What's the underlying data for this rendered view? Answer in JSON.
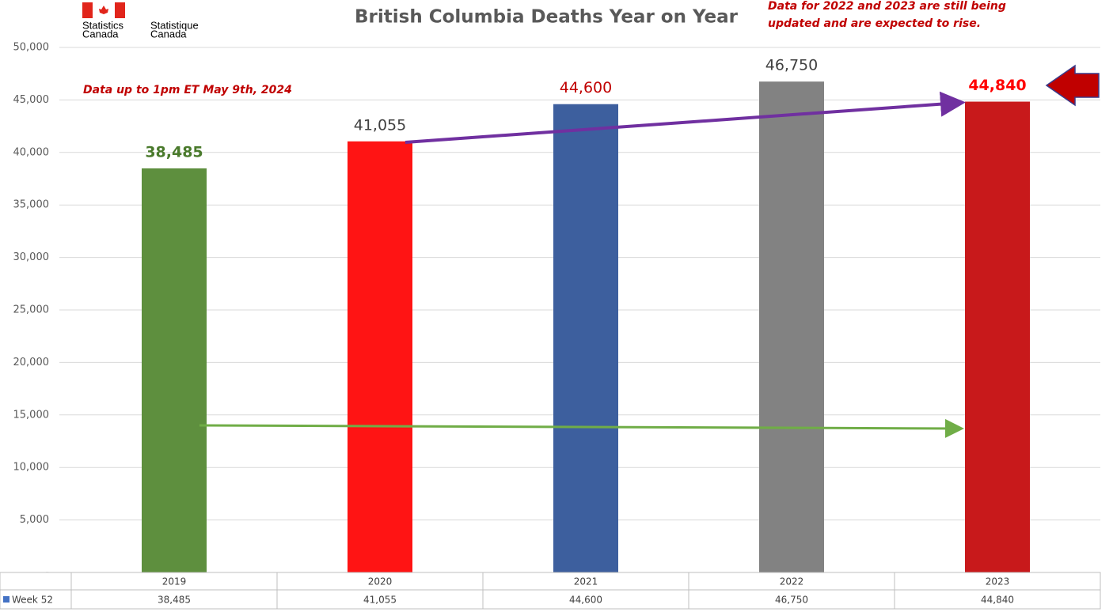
{
  "chart_data": {
    "type": "bar",
    "title": "British Columbia Deaths Year on Year",
    "logo_en": [
      "Statistics",
      "Canada"
    ],
    "logo_fr": [
      "Statistique",
      "Canada"
    ],
    "annotation_left": "Data up to 1pm ET May 9th, 2024",
    "annotation_right": [
      "Data for 2022 and 2023 are still being",
      "updated and are expected to rise."
    ],
    "categories": [
      "2019",
      "2020",
      "2021",
      "2022",
      "2023"
    ],
    "series": [
      {
        "name": "Week 52",
        "color": "#4472c4",
        "values": [
          38485,
          41055,
          44600,
          46750,
          44840
        ],
        "value_labels": [
          "38,485",
          "41,055",
          "44,600",
          "46,750",
          "44,840"
        ],
        "colors": [
          "#5e8f3e",
          "#ff1414",
          "#3d5f9e",
          "#828282",
          "#c8191b"
        ],
        "label_colors": [
          "#4a7a2c",
          "#404040",
          "#c00000",
          "#404040",
          "#ff0000"
        ]
      }
    ],
    "ylim": [
      0,
      50000
    ],
    "yticks": [
      {
        "value": 0,
        "label": "-"
      },
      {
        "value": 5000,
        "label": "5,000"
      },
      {
        "value": 10000,
        "label": "10,000"
      },
      {
        "value": 15000,
        "label": "15,000"
      },
      {
        "value": 20000,
        "label": "20,000"
      },
      {
        "value": 25000,
        "label": "25,000"
      },
      {
        "value": 30000,
        "label": "30,000"
      },
      {
        "value": 35000,
        "label": "35,000"
      },
      {
        "value": 40000,
        "label": "40,000"
      },
      {
        "value": 45000,
        "label": "45,000"
      },
      {
        "value": 50000,
        "label": "50,000"
      }
    ],
    "grid": true
  }
}
